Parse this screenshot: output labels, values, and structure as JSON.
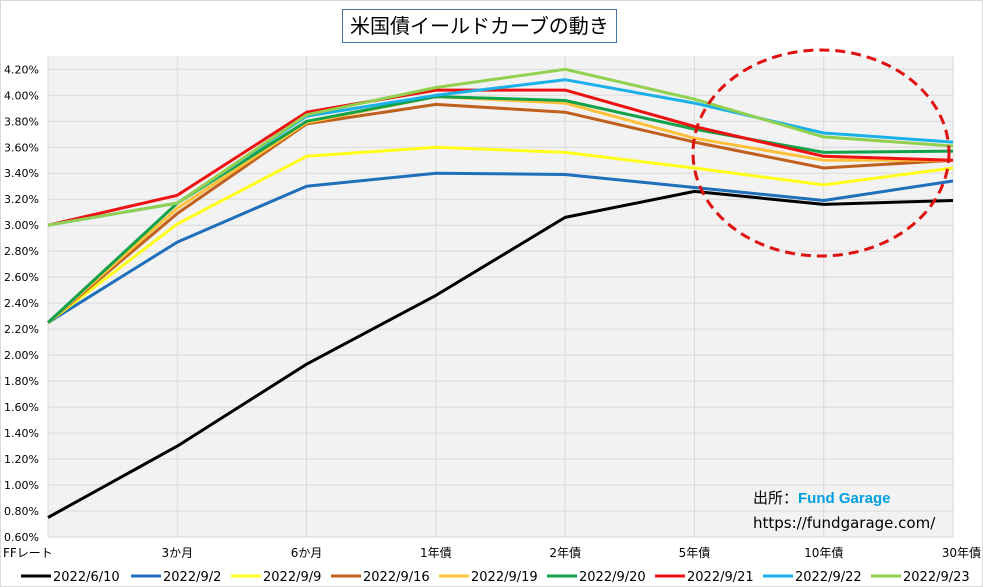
{
  "chart_data": {
    "type": "line",
    "title": "米国債イールドカーブの動き",
    "xlabel": "",
    "ylabel": "",
    "ylim": [
      0.6,
      4.2
    ],
    "ytick_step": 0.2,
    "ytick_format": "percent_2dp",
    "grid": true,
    "legend_position": "bottom",
    "categories": [
      "FFレート",
      "3か月",
      "6か月",
      "1年債",
      "2年債",
      "5年債",
      "10年債",
      "30年債"
    ],
    "series": [
      {
        "name": "2022/6/10",
        "color": "#000000",
        "values": [
          0.75,
          1.3,
          1.93,
          2.46,
          3.06,
          3.26,
          3.16,
          3.19
        ]
      },
      {
        "name": "2022/9/2",
        "color": "#1f6fba",
        "values": [
          2.25,
          2.87,
          3.3,
          3.4,
          3.39,
          3.29,
          3.19,
          3.34
        ]
      },
      {
        "name": "2022/9/9",
        "color": "#ffff1a",
        "values": [
          2.25,
          3.01,
          3.53,
          3.6,
          3.56,
          3.44,
          3.31,
          3.44
        ]
      },
      {
        "name": "2022/9/16",
        "color": "#c0601e",
        "values": [
          2.25,
          3.09,
          3.78,
          3.93,
          3.87,
          3.64,
          3.44,
          3.5
        ]
      },
      {
        "name": "2022/9/19",
        "color": "#ffc03a",
        "values": [
          2.25,
          3.13,
          3.79,
          3.99,
          3.94,
          3.67,
          3.5,
          3.5
        ]
      },
      {
        "name": "2022/9/20",
        "color": "#13a24a",
        "values": [
          2.25,
          3.17,
          3.8,
          3.99,
          3.96,
          3.74,
          3.56,
          3.57
        ]
      },
      {
        "name": "2022/9/21",
        "color": "#ee1111",
        "values": [
          3.0,
          3.23,
          3.87,
          4.04,
          4.04,
          3.76,
          3.53,
          3.5
        ]
      },
      {
        "name": "2022/9/22",
        "color": "#1ab0e8",
        "values": [
          3.0,
          3.17,
          3.84,
          4.0,
          4.12,
          3.94,
          3.71,
          3.64
        ]
      },
      {
        "name": "2022/9/23",
        "color": "#92d050",
        "values": [
          3.0,
          3.17,
          3.85,
          4.06,
          4.2,
          3.97,
          3.68,
          3.61
        ]
      }
    ],
    "annotations": {
      "highlight": "red dashed circle around 5年債–30年債",
      "source_label": "出所：",
      "source_name": "Fund Garage",
      "source_url": "https://fundgarage.com/"
    }
  }
}
